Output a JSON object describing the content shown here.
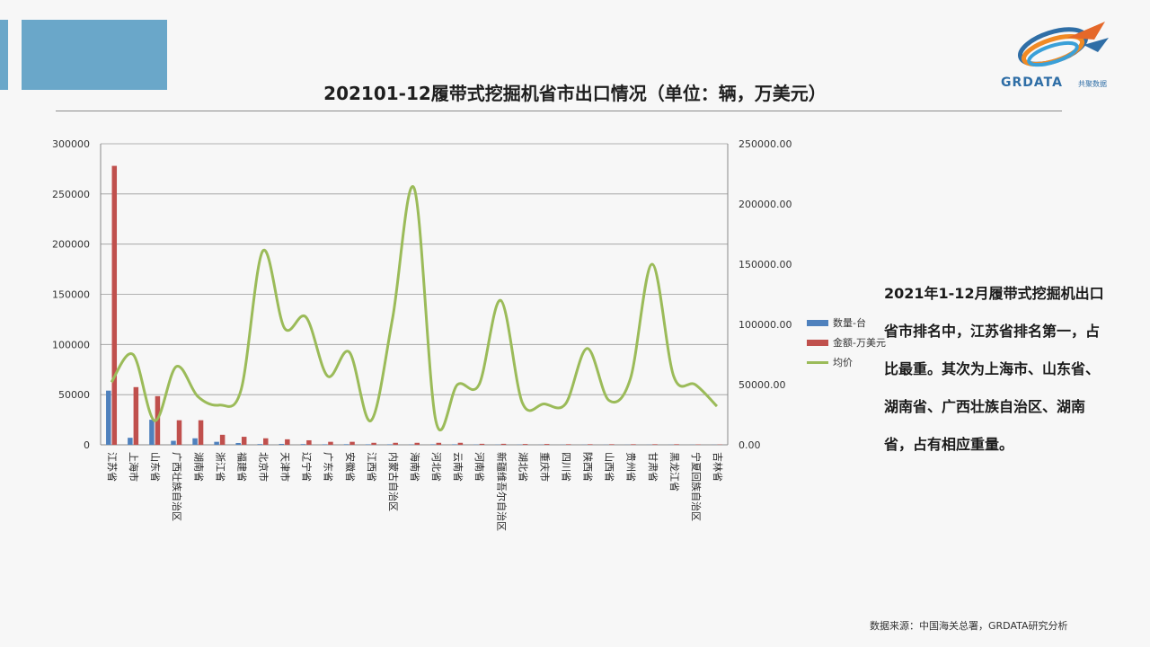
{
  "title": "202101-12履带式挖掘机省市出口情况（单位：辆，万美元）",
  "logo": {
    "text": "GRDATA",
    "sub": "共聚数据"
  },
  "side_text": "2021年1-12月履带式挖掘机出口省市排名中，江苏省排名第一，占比最重。其次为上海市、山东省、湖南省、广西壮族自治区、湖南省，占有相应重量。",
  "source": "数据来源：中国海关总署，GRDATA研究分析",
  "colors": {
    "qty": "#4f81bd",
    "amount": "#c0504d",
    "price": "#9bbb59",
    "accent": "#6aa7c9"
  },
  "chart_data": {
    "type": "bar",
    "categories": [
      "江苏省",
      "上海市",
      "山东省",
      "广西壮族自治区",
      "湖南省",
      "浙江省",
      "福建省",
      "北京市",
      "天津市",
      "辽宁省",
      "广东省",
      "安徽省",
      "江西省",
      "内蒙古自治区",
      "海南省",
      "河北省",
      "云南省",
      "河南省",
      "新疆维吾尔自治区",
      "湖北省",
      "重庆市",
      "四川省",
      "陕西省",
      "山西省",
      "贵州省",
      "甘肃省",
      "黑龙江省",
      "宁夏回族自治区",
      "吉林省"
    ],
    "series": [
      {
        "name": "数量-台",
        "type": "bar",
        "axis": "left",
        "values": [
          54000,
          7000,
          25000,
          4000,
          6500,
          3000,
          1800,
          700,
          900,
          700,
          500,
          600,
          500,
          500,
          300,
          500,
          500,
          300,
          250,
          250,
          150,
          150,
          150,
          150,
          150,
          150,
          150,
          150,
          100
        ]
      },
      {
        "name": "金额-万美元",
        "type": "bar",
        "axis": "left",
        "values": [
          278000,
          57500,
          48500,
          24500,
          24500,
          10000,
          8000,
          6500,
          5500,
          4500,
          3000,
          3000,
          2000,
          2000,
          2000,
          2000,
          2000,
          1000,
          1000,
          800,
          800,
          600,
          600,
          600,
          600,
          600,
          600,
          400,
          300
        ]
      },
      {
        "name": "均价",
        "type": "line",
        "axis": "right",
        "values": [
          52000,
          75000,
          20000,
          65000,
          40000,
          33000,
          46000,
          161000,
          97000,
          106000,
          57000,
          77000,
          20000,
          105000,
          213000,
          20000,
          50000,
          50000,
          120000,
          35000,
          34000,
          34000,
          80000,
          37000,
          55000,
          150000,
          57000,
          50000,
          32000
        ]
      }
    ],
    "yleft": {
      "min": 0,
      "max": 300000,
      "ticks": [
        "0",
        "50000",
        "100000",
        "150000",
        "200000",
        "250000",
        "300000"
      ]
    },
    "yright": {
      "min": 0,
      "max": 250000,
      "ticks": [
        "0.00",
        "50000.00",
        "100000.00",
        "150000.00",
        "200000.00",
        "250000.00"
      ]
    },
    "grid": true,
    "legend": "right"
  }
}
